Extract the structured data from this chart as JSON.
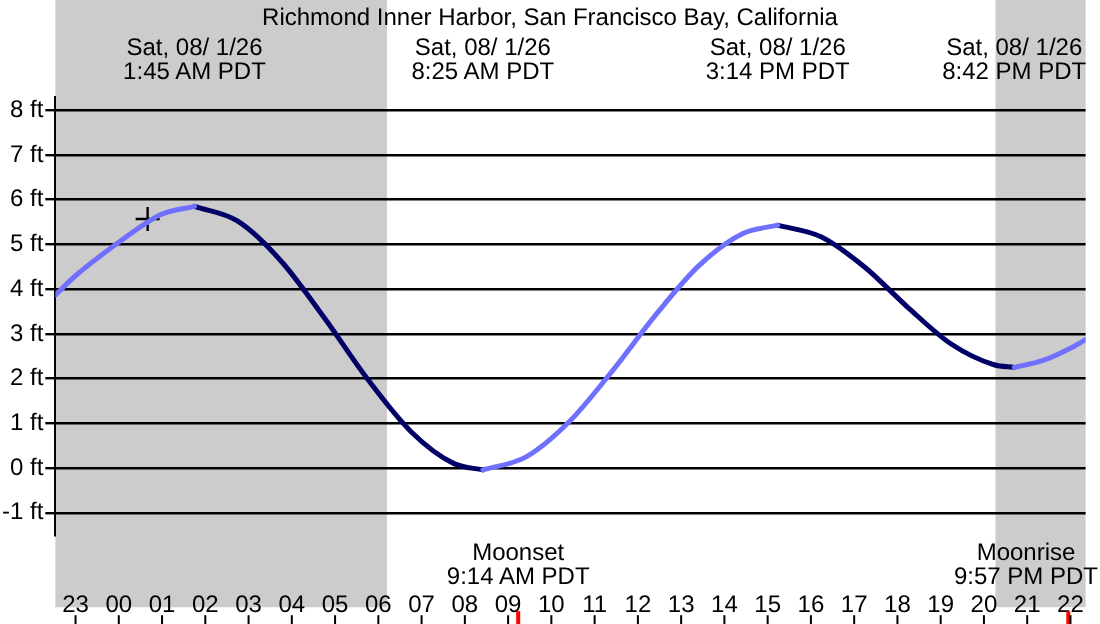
{
  "chart_data": {
    "type": "line",
    "title": "Richmond Inner Harbor, San Francisco Bay, California",
    "xlim": [
      "--07-31T22:32",
      "--08-01T22:21"
    ],
    "xticks": [
      {
        "value": "--07-31T23:00",
        "label": "23"
      },
      {
        "value": "--08-01T00:00",
        "label": "00"
      },
      {
        "value": "--08-01T01:00",
        "label": "01"
      },
      {
        "value": "--08-01T02:00",
        "label": "02"
      },
      {
        "value": "--08-01T03:00",
        "label": "03"
      },
      {
        "value": "--08-01T04:00",
        "label": "04"
      },
      {
        "value": "--08-01T05:00",
        "label": "05"
      },
      {
        "value": "--08-01T06:00",
        "label": "06"
      },
      {
        "value": "--08-01T07:00",
        "label": "07"
      },
      {
        "value": "--08-01T08:00",
        "label": "08"
      },
      {
        "value": "--08-01T09:00",
        "label": "09"
      },
      {
        "value": "--08-01T10:00",
        "label": "10"
      },
      {
        "value": "--08-01T11:00",
        "label": "11"
      },
      {
        "value": "--08-01T12:00",
        "label": "12"
      },
      {
        "value": "--08-01T13:00",
        "label": "13"
      },
      {
        "value": "--08-01T14:00",
        "label": "14"
      },
      {
        "value": "--08-01T15:00",
        "label": "15"
      },
      {
        "value": "--08-01T16:00",
        "label": "16"
      },
      {
        "value": "--08-01T17:00",
        "label": "17"
      },
      {
        "value": "--08-01T18:00",
        "label": "18"
      },
      {
        "value": "--08-01T19:00",
        "label": "19"
      },
      {
        "value": "--08-01T20:00",
        "label": "20"
      },
      {
        "value": "--08-01T21:00",
        "label": "21"
      },
      {
        "value": "--08-01T22:00",
        "label": "22"
      }
    ],
    "ylim": [
      -1.5,
      8.3
    ],
    "yticks": [
      {
        "value": -1,
        "label": "-1 ft"
      },
      {
        "value": 0,
        "label": "0 ft"
      },
      {
        "value": 1,
        "label": "1 ft"
      },
      {
        "value": 2,
        "label": "2 ft"
      },
      {
        "value": 3,
        "label": "3 ft"
      },
      {
        "value": 4,
        "label": "4 ft"
      },
      {
        "value": 5,
        "label": "5 ft"
      },
      {
        "value": 6,
        "label": "6 ft"
      },
      {
        "value": 7,
        "label": "7 ft"
      },
      {
        "value": 8,
        "label": "8 ft"
      }
    ],
    "grid": "y",
    "legend": false,
    "marker": "none",
    "line_style": "solid",
    "series": [
      {
        "color": "#7070ff",
        "x": [
          "--07-31T22:32",
          "--07-31T23:00",
          "--08-01T00:00",
          "--08-01T00:40",
          "--08-01T01:00",
          "--08-01T01:45",
          "--08-01T05:00",
          "--08-01T08:25",
          "--08-01T09:25",
          "--08-01T10:25",
          "--08-01T11:25",
          "--08-01T12:25",
          "--08-01T13:25",
          "--08-01T14:25",
          "--08-01T15:14",
          "--08-01T18:00",
          "--08-01T20:42",
          "--08-01T21:21",
          "--08-01T22:00",
          "--08-01T22:21"
        ],
        "values": [
          3.87,
          4.3,
          5.05,
          5.5,
          5.68,
          5.85,
          null,
          -0.04,
          0.25,
          1.04,
          2.18,
          3.43,
          4.53,
          5.24,
          5.43,
          null,
          2.25,
          2.4,
          2.68,
          2.87
        ]
      },
      {
        "color": "#000066",
        "x": [
          "--08-01T01:45",
          "--08-01T02:45",
          "--08-01T03:45",
          "--08-01T04:45",
          "--08-01T05:45",
          "--08-01T06:45",
          "--08-01T07:45",
          "--08-01T08:25",
          "--08-01T12:00",
          "--08-01T15:14",
          "--08-01T16:14",
          "--08-01T17:14",
          "--08-01T18:14",
          "--08-01T19:14",
          "--08-01T20:14",
          "--08-01T20:42"
        ],
        "values": [
          5.85,
          5.52,
          4.63,
          3.36,
          1.99,
          0.82,
          0.1,
          -0.04,
          null,
          5.43,
          5.17,
          4.5,
          3.6,
          2.78,
          2.31,
          2.25
        ]
      },
      {
        "type": "scatter",
        "marker": "cross",
        "color": "#000000",
        "x": [
          "--08-01T00:40"
        ],
        "values": [
          5.57
        ]
      }
    ],
    "bands": [
      {
        "axis": "x",
        "from": "--07-31T22:32",
        "to": "--08-01T06:12",
        "color": "#cccccc"
      },
      {
        "axis": "x",
        "from": "--08-01T20:16",
        "to": "--08-01T22:21",
        "color": "#cccccc"
      }
    ],
    "ref_lines": [
      {
        "axis": "x",
        "value": "--08-01T09:14",
        "label": "Moonset\n9:14 AM PDT",
        "color": "#ff0000"
      },
      {
        "axis": "x",
        "value": "--08-01T21:57",
        "label": "Moonrise\n9:57 PM PDT",
        "color": "#ff0000"
      }
    ],
    "annotations": [
      "Sat, 08/ 1/26\n1:45 AM PDT",
      "Sat, 08/ 1/26\n8:25 AM PDT",
      "Sat, 08/ 1/26\n3:14 PM PDT",
      "Sat, 08/ 1/26\n8:42 PM PDT"
    ]
  }
}
